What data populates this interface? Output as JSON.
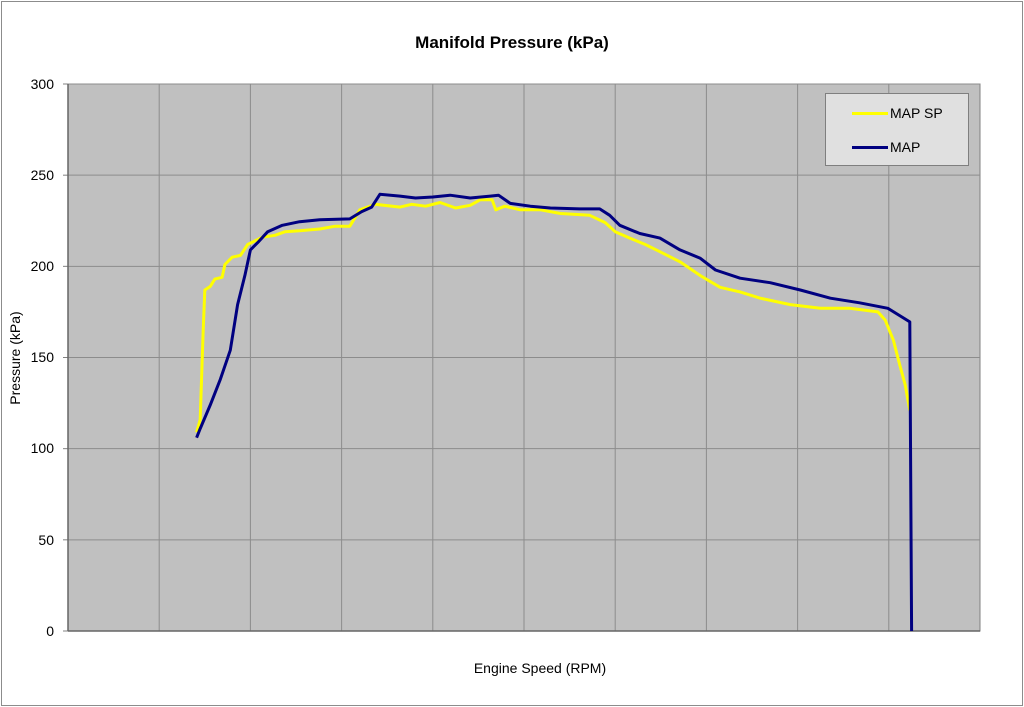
{
  "chart_data": {
    "type": "line",
    "title": "Manifold Pressure (kPa)",
    "xlabel": "Engine Speed (RPM)",
    "ylabel": "Pressure (kPa)",
    "ylim": [
      0,
      300
    ],
    "yticks": [
      0,
      50,
      100,
      150,
      200,
      250,
      300
    ],
    "xlim": [
      0,
      10
    ],
    "x_units_note": "x in gridline divisions (no x tick labels shown)",
    "grid": true,
    "legend_position": "top-right",
    "plot_background": "#c0c0c0",
    "series": [
      {
        "name": "MAP SP",
        "color": "#ffff00",
        "x": [
          1.41,
          1.45,
          1.48,
          1.5,
          1.56,
          1.61,
          1.69,
          1.72,
          1.8,
          1.89,
          1.97,
          2.05,
          2.13,
          2.27,
          2.38,
          2.54,
          2.76,
          2.93,
          3.09,
          3.2,
          3.37,
          3.64,
          3.77,
          3.92,
          4.08,
          4.25,
          4.41,
          4.52,
          4.65,
          4.69,
          4.79,
          4.96,
          5.18,
          5.4,
          5.72,
          5.89,
          6.0,
          6.16,
          6.33,
          6.49,
          6.71,
          6.93,
          7.15,
          7.37,
          7.59,
          7.92,
          8.25,
          8.57,
          8.88,
          8.96,
          9.05,
          9.12,
          9.18,
          9.23
        ],
        "values": [
          109,
          116,
          162,
          187,
          189,
          193,
          194,
          201,
          205,
          206,
          212,
          214,
          216,
          217,
          219,
          219.5,
          220.5,
          222,
          222,
          231,
          234,
          232.5,
          234,
          233,
          235,
          232,
          233.5,
          236.5,
          236.5,
          231,
          233,
          231,
          231,
          229,
          228,
          224,
          219,
          215.5,
          212,
          208,
          202.5,
          195,
          188.5,
          186,
          182.5,
          179,
          177,
          177,
          175,
          170.5,
          159.5,
          146,
          135,
          121
        ]
      },
      {
        "name": "MAP",
        "color": "#000080",
        "x": [
          1.41,
          1.45,
          1.56,
          1.67,
          1.78,
          1.86,
          1.94,
          2.0,
          2.08,
          2.19,
          2.35,
          2.54,
          2.76,
          3.09,
          3.22,
          3.33,
          3.42,
          3.64,
          3.81,
          4.0,
          4.19,
          4.41,
          4.63,
          4.72,
          4.85,
          5.07,
          5.29,
          5.61,
          5.83,
          5.94,
          6.05,
          6.27,
          6.49,
          6.71,
          6.93,
          7.1,
          7.37,
          7.7,
          8.03,
          8.36,
          8.68,
          8.99,
          9.12,
          9.23,
          9.25
        ],
        "values": [
          106,
          111,
          124,
          138,
          154,
          179,
          195,
          209,
          213,
          219,
          222.5,
          224.5,
          225.5,
          226,
          230,
          232.5,
          239.5,
          238.5,
          237.5,
          238,
          239,
          237.5,
          238.5,
          239,
          234.5,
          233,
          232,
          231.5,
          231.5,
          228,
          222.5,
          218,
          215.5,
          209,
          204.5,
          198,
          193.5,
          191,
          187,
          182.5,
          180,
          177,
          173,
          169.5,
          0
        ]
      }
    ]
  },
  "labels": {
    "title": "Manifold Pressure (kPa)",
    "xlabel": "Engine Speed (RPM)",
    "ylabel": "Pressure (kPa)",
    "yticks": [
      "300",
      "250",
      "200",
      "150",
      "100",
      "50",
      "0"
    ],
    "legend": [
      "MAP SP",
      "MAP"
    ]
  }
}
